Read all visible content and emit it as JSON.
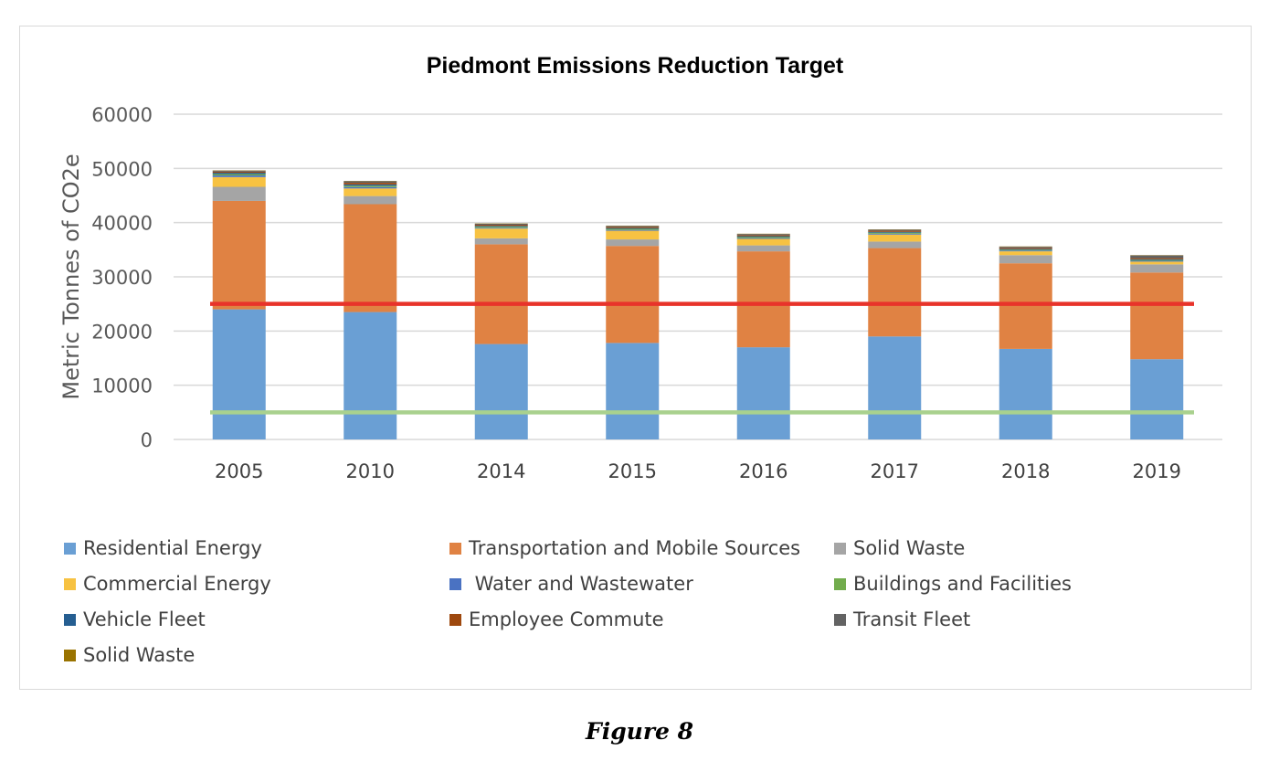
{
  "figure_caption": "Figure 8",
  "chart_data": {
    "type": "bar",
    "stacked": true,
    "title": "Piedmont Emissions Reduction Target",
    "xlabel": "",
    "ylabel": "Metric Tonnes of CO2e",
    "ylim": [
      0,
      60000
    ],
    "yticks": [
      0,
      10000,
      20000,
      30000,
      40000,
      50000,
      60000
    ],
    "grid": true,
    "legend_position": "bottom",
    "categories": [
      "2005",
      "2010",
      "2014",
      "2015",
      "2016",
      "2017",
      "2018",
      "2019"
    ],
    "series": [
      {
        "name": "Residential Energy",
        "color": "#6a9fd4",
        "values": [
          24000,
          23500,
          17600,
          17800,
          17000,
          19000,
          16700,
          14800
        ]
      },
      {
        "name": "Transportation and Mobile Sources",
        "color": "#e08243",
        "values": [
          20000,
          19900,
          18400,
          17900,
          17700,
          16300,
          15800,
          16000
        ]
      },
      {
        "name": "Solid Waste",
        "color": "#a5a5a5",
        "values": [
          2600,
          1500,
          1100,
          1200,
          1100,
          1200,
          1500,
          1500
        ]
      },
      {
        "name": "Commercial Energy",
        "color": "#f7c242",
        "values": [
          1800,
          1400,
          1800,
          1600,
          1200,
          1300,
          700,
          500
        ]
      },
      {
        "name": " Water and Wastewater",
        "color": "#4a72c2",
        "values": [
          300,
          250,
          150,
          150,
          150,
          150,
          150,
          150
        ]
      },
      {
        "name": "Buildings and Facilities",
        "color": "#72ac4d",
        "values": [
          250,
          250,
          200,
          200,
          200,
          200,
          150,
          150
        ]
      },
      {
        "name": "Vehicle Fleet",
        "color": "#255e91",
        "values": [
          250,
          250,
          150,
          150,
          150,
          150,
          150,
          150
        ]
      },
      {
        "name": "Employee Commute",
        "color": "#9e480e",
        "values": [
          200,
          300,
          200,
          200,
          200,
          200,
          200,
          200
        ]
      },
      {
        "name": "Transit Fleet",
        "color": "#636363",
        "values": [
          200,
          300,
          200,
          200,
          200,
          200,
          200,
          500
        ]
      },
      {
        "name": "Solid Waste",
        "color": "#997300",
        "values": [
          50,
          50,
          50,
          50,
          50,
          50,
          50,
          50
        ]
      }
    ],
    "reference_lines": [
      {
        "value": 25000,
        "color": "#e8332a"
      },
      {
        "value": 5000,
        "color": "#a9d18e"
      }
    ]
  }
}
